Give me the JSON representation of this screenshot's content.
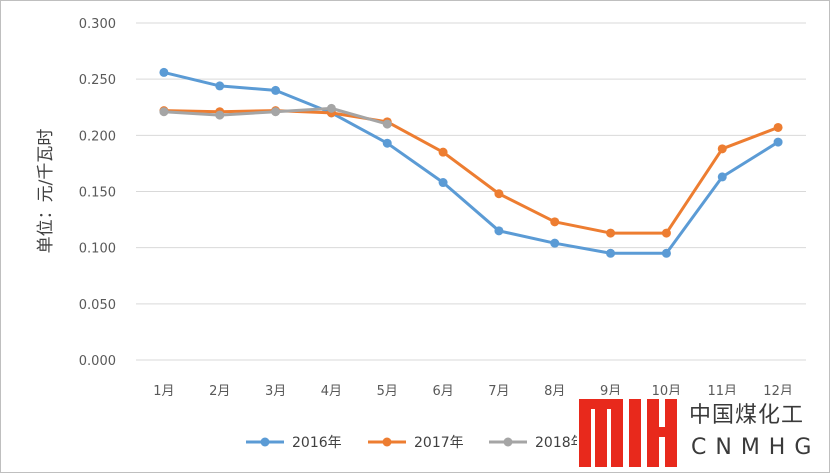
{
  "chart_data": {
    "type": "line",
    "categories": [
      "1月",
      "2月",
      "3月",
      "4月",
      "5月",
      "6月",
      "7月",
      "8月",
      "9月",
      "10月",
      "11月",
      "12月"
    ],
    "series": [
      {
        "name": "2016年",
        "color": "#5b9bd5",
        "values": [
          0.256,
          0.244,
          0.24,
          0.22,
          0.193,
          0.158,
          0.115,
          0.104,
          0.095,
          0.095,
          0.163,
          0.194
        ]
      },
      {
        "name": "2017年",
        "color": "#ed7d31",
        "values": [
          0.222,
          0.221,
          0.222,
          0.22,
          0.212,
          0.185,
          0.148,
          0.123,
          0.113,
          0.113,
          0.188,
          0.207
        ]
      },
      {
        "name": "2018年",
        "color": "#a5a5a5",
        "values": [
          0.221,
          0.218,
          0.221,
          0.224,
          0.21,
          null,
          null,
          null,
          null,
          null,
          null,
          null
        ]
      }
    ],
    "ylabel": "单位：元/千瓦时",
    "ylim": [
      0,
      0.3
    ],
    "yticks": [
      "0.000",
      "0.050",
      "0.100",
      "0.150",
      "0.200",
      "0.250",
      "0.300"
    ],
    "grid": true,
    "legend": "bottom"
  },
  "watermark": {
    "name": "中国煤化工",
    "sub": "CNMHG",
    "color": "#e8291c"
  }
}
